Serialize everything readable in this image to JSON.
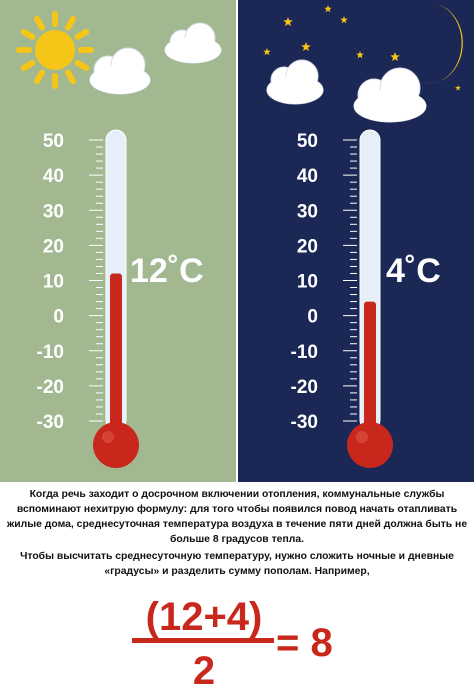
{
  "day": {
    "temperature_value": 12,
    "temperature_label": "12˚C",
    "colors": {
      "background": "#a2b891",
      "sun": "#f5c518",
      "mercury": "#c8281b"
    }
  },
  "night": {
    "temperature_value": 4,
    "temperature_label": "4˚C",
    "colors": {
      "background": "#1b2755",
      "moon": "#f5c518",
      "mercury": "#c8281b"
    }
  },
  "scale": {
    "labels": [
      "50",
      "40",
      "30",
      "20",
      "10",
      "0",
      "-10",
      "-20",
      "-30"
    ],
    "min": -30,
    "max": 50
  },
  "text": {
    "paragraph1": "Когда речь заходит о досрочном включении отопления, коммунальные службы вспоминают нехитрую формулу: для того чтобы появился повод начать отапливать жилые дома, среднесуточная температура воздуха в течение пяти дней должна быть не больше 8 градусов тепла.",
    "paragraph2": "Чтобы высчитать среднесуточную температуру, нужно сложить ночные и дневные «градусы» и разделить сумму пополам. Например,"
  },
  "formula": {
    "numerator": "(12+4)",
    "denominator": "2",
    "result": "= 8",
    "color": "#c8281b"
  }
}
